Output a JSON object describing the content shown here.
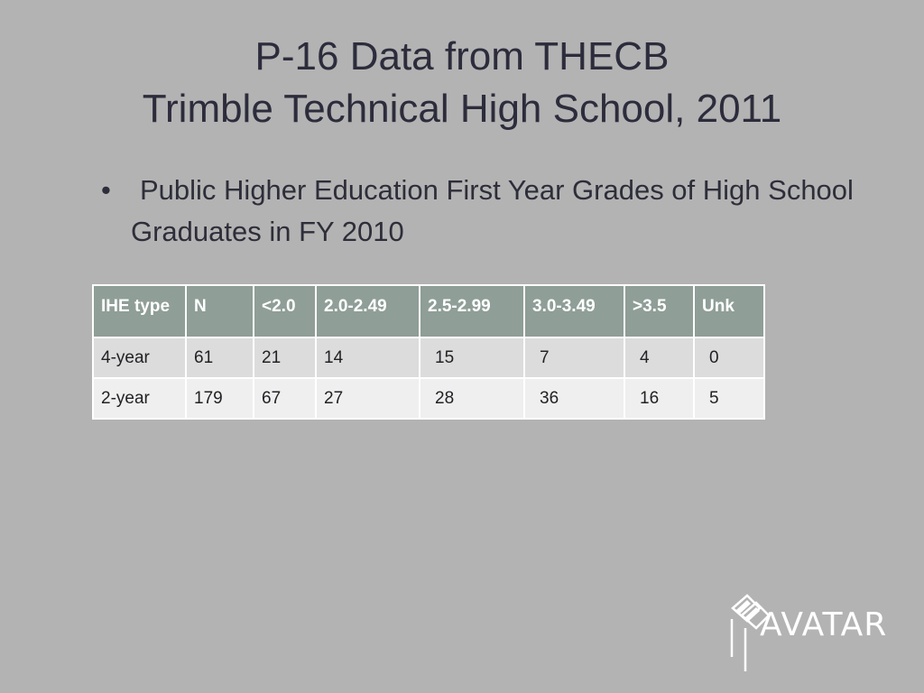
{
  "title": {
    "line1": "P-16 Data from THECB",
    "line2": "Trimble Technical High School, 2011"
  },
  "bullet": {
    "symbol": "•",
    "text": "Public Higher Education First Year Grades of High School Graduates in FY 2010"
  },
  "table": {
    "headers": [
      "IHE type",
      "N",
      "<2.0",
      "2.0-2.49",
      "2.5-2.99",
      "3.0-3.49",
      ">3.5",
      "Unk"
    ],
    "rows": [
      [
        "4-year",
        "61",
        "21",
        "14",
        "15",
        "7",
        "4",
        "0"
      ],
      [
        "2-year",
        "179",
        "67",
        "27",
        "28",
        "36",
        "16",
        "5"
      ]
    ]
  },
  "logo": {
    "text": "AVATAR",
    "icon": "avatar-logo-icon",
    "color": "#ffffff"
  },
  "colors": {
    "background": "#b3b3b3",
    "header_fill": "#8f9e97",
    "row_odd": "#dcdcdc",
    "row_even": "#efefef"
  }
}
